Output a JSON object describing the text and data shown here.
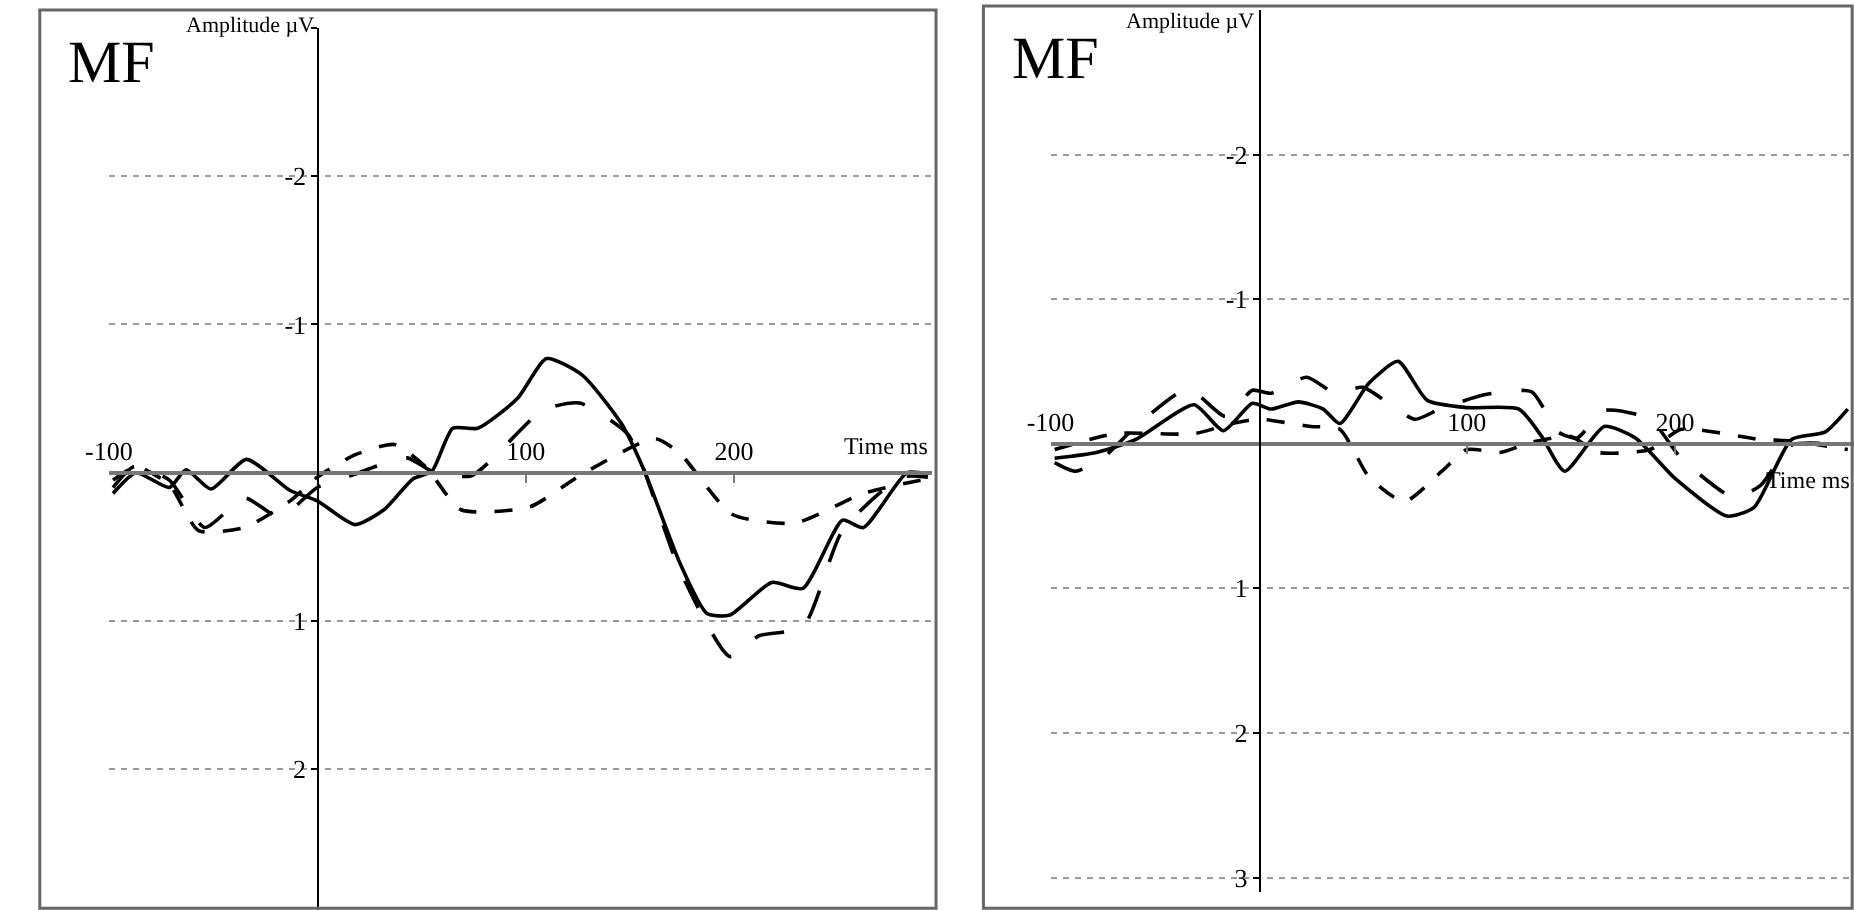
{
  "chart_data": [
    {
      "type": "line",
      "title": "MF",
      "xlabel": "Time ms",
      "ylabel": "Amplitude µV",
      "xlim": [
        -100,
        295
      ],
      "ylim": [
        2.95,
        -3
      ],
      "xticks": [
        -100,
        100,
        200
      ],
      "yticks": [
        {
          "value": -3,
          "label": null
        },
        -2,
        -1,
        1,
        2
      ],
      "grid": "y",
      "marker": "none",
      "series": [
        {
          "color": "#000000",
          "line_style": "solid",
          "x": [
            -98,
            -87,
            -71,
            -63,
            -51,
            -34,
            -13,
            0,
            18,
            32,
            46,
            55,
            65,
            77,
            96,
            110,
            127,
            146,
            157,
            174,
            187,
            198,
            218,
            233,
            252,
            262,
            283,
            293
          ],
          "values": [
            0.14,
            0,
            0.1,
            -0.02,
            0.11,
            -0.09,
            0.12,
            0.19,
            0.35,
            0.25,
            0.04,
            -0.01,
            -0.3,
            -0.3,
            -0.5,
            -0.77,
            -0.66,
            -0.33,
            -0.01,
            0.61,
            0.95,
            0.96,
            0.74,
            0.78,
            0.32,
            0.37,
            0,
            0.01
          ]
        },
        {
          "color": "#000000",
          "line_style": "dashed",
          "x": [
            -98,
            -88,
            -71,
            -54,
            -35,
            -18,
            0,
            18,
            43,
            55,
            74,
            108,
            126,
            149,
            157,
            174,
            198,
            212,
            233,
            252,
            280,
            293
          ],
          "values": [
            0.1,
            -0.04,
            0.05,
            0.37,
            0.17,
            0.3,
            0.1,
            0.01,
            -0.1,
            -0.01,
            0.02,
            -0.42,
            -0.47,
            -0.26,
            -0.01,
            0.66,
            1.24,
            1.1,
            1.04,
            0.39,
            0.03,
            0.03
          ]
        },
        {
          "color": "#000000",
          "line_style": "dotted",
          "x": [
            -98,
            -87,
            -71,
            -57,
            -35,
            -13,
            0,
            18,
            37,
            52,
            69,
            102,
            127,
            162,
            174,
            199,
            229,
            262,
            293
          ],
          "values": [
            0.05,
            -0.04,
            0.08,
            0.39,
            0.37,
            0.19,
            0.03,
            -0.12,
            -0.19,
            -0.04,
            0.25,
            0.23,
            0.01,
            -0.23,
            -0.13,
            0.28,
            0.34,
            0.14,
            0.04
          ]
        }
      ]
    },
    {
      "type": "line",
      "title": "MF",
      "xlabel": "Time ms",
      "ylabel": "Amplitude µV",
      "xlim": [
        -100,
        286
      ],
      "ylim": [
        3.1,
        -3
      ],
      "xticks": [
        -100,
        100,
        200
      ],
      "yticks": [
        -2,
        -1,
        1,
        2,
        3
      ],
      "grid": "y",
      "marker": "none",
      "series": [
        {
          "color": "#000000",
          "line_style": "solid",
          "x": [
            -98,
            -78,
            -59,
            -31,
            -17,
            -3,
            6,
            19,
            31,
            39,
            53,
            67,
            81,
            100,
            125,
            136,
            147,
            166,
            181,
            200,
            225,
            238,
            256,
            272,
            283
          ],
          "values": [
            0.1,
            0.06,
            -0.03,
            -0.27,
            -0.09,
            -0.28,
            -0.24,
            -0.29,
            -0.24,
            -0.14,
            -0.42,
            -0.57,
            -0.3,
            -0.25,
            -0.24,
            -0.05,
            0.19,
            -0.12,
            -0.04,
            0.24,
            0.5,
            0.44,
            -0.03,
            -0.08,
            -0.24
          ]
        },
        {
          "color": "#000000",
          "line_style": "dashed",
          "x": [
            -98,
            -88,
            -75,
            -59,
            -34,
            -16,
            -3,
            6,
            23,
            37,
            50,
            75,
            87,
            109,
            131,
            144,
            153,
            166,
            188,
            203,
            228,
            241,
            256,
            283
          ],
          "values": [
            0.13,
            0.19,
            0.1,
            -0.12,
            -0.38,
            -0.19,
            -0.37,
            -0.35,
            -0.46,
            -0.35,
            -0.39,
            -0.17,
            -0.24,
            -0.34,
            -0.36,
            -0.08,
            -0.04,
            -0.23,
            -0.17,
            0.1,
            0.37,
            0.29,
            0.01,
            0.01
          ]
        },
        {
          "color": "#000000",
          "line_style": "dotted",
          "x": [
            -98,
            -69,
            -31,
            -13,
            0,
            25,
            39,
            53,
            70,
            88,
            100,
            116,
            131,
            150,
            163,
            188,
            203,
            241,
            256,
            283
          ],
          "values": [
            0.04,
            -0.07,
            -0.07,
            -0.14,
            -0.17,
            -0.12,
            -0.1,
            0.23,
            0.4,
            0.19,
            0.04,
            0.06,
            -0.01,
            -0.05,
            0.06,
            0.04,
            -0.1,
            -0.03,
            -0.02,
            0.04
          ]
        }
      ]
    }
  ]
}
